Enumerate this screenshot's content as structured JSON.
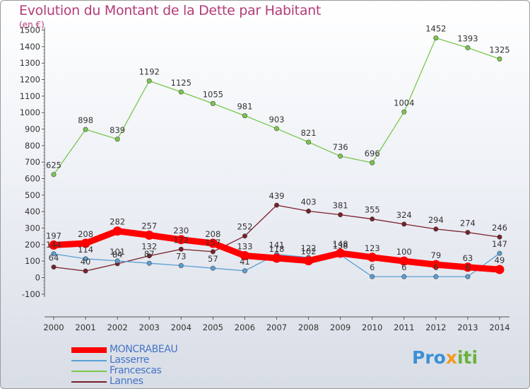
{
  "title": "Evolution du Montant de la Dette par Habitant",
  "unit": "(en €)",
  "logo": {
    "p1": "Pro",
    "p2": "x",
    "p3": "iti"
  },
  "chart_data": {
    "type": "line",
    "x": [
      "2000",
      "2001",
      "2002",
      "2003",
      "2004",
      "2005",
      "2006",
      "2007",
      "2008",
      "2009",
      "2010",
      "2011",
      "2012",
      "2013",
      "2014"
    ],
    "ylim": [
      -100,
      1500
    ],
    "yticks": [
      -100,
      0,
      100,
      200,
      300,
      400,
      500,
      600,
      700,
      800,
      900,
      1000,
      1100,
      1200,
      1300,
      1400,
      1500
    ],
    "grid": false,
    "legend_position": "bottom-left",
    "series": [
      {
        "name": "MONCRABEAU",
        "color": "#ff0000",
        "values": [
          197,
          208,
          282,
          257,
          230,
          208,
          133,
          118,
          102,
          148,
          123,
          100,
          79,
          63,
          49
        ]
      },
      {
        "name": "Lasserre",
        "color": "#5a9fd4",
        "values": [
          144,
          114,
          101,
          87,
          73,
          57,
          41,
          141,
          122,
          138,
          6,
          6,
          6,
          6,
          147
        ]
      },
      {
        "name": "Francescas",
        "color": "#7bc74d",
        "values": [
          625,
          898,
          839,
          1192,
          1125,
          1055,
          981,
          903,
          821,
          736,
          696,
          1004,
          1452,
          1393,
          1325
        ]
      },
      {
        "name": "Lannes",
        "color": "#7a1f2b",
        "values": [
          64,
          40,
          84,
          132,
          172,
          157,
          252,
          439,
          403,
          381,
          355,
          324,
          294,
          274,
          246
        ]
      }
    ],
    "data_labels": [
      [
        197,
        208,
        282,
        257,
        230,
        208,
        133,
        118,
        102,
        148,
        123,
        100,
        79,
        63,
        49
      ],
      [
        144,
        114,
        101,
        87,
        73,
        57,
        41,
        141,
        122,
        138,
        6,
        6,
        6,
        6,
        147
      ],
      [
        625,
        898,
        839,
        1192,
        1125,
        1055,
        981,
        903,
        821,
        736,
        696,
        1004,
        1452,
        1393,
        1325
      ],
      [
        64,
        40,
        84,
        132,
        172,
        157,
        252,
        439,
        403,
        381,
        355,
        324,
        294,
        274,
        246
      ]
    ]
  }
}
